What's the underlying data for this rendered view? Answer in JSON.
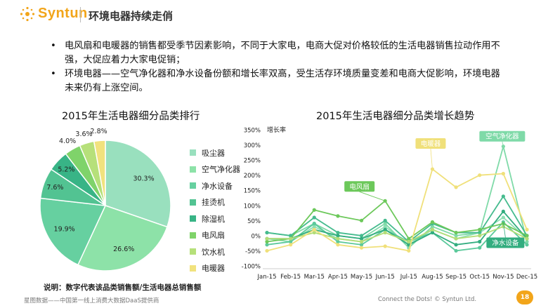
{
  "brand": {
    "name": "Syntun",
    "accent": "#f2a51a"
  },
  "header": {
    "title": "环境电器持续走俏"
  },
  "bullets": [
    "电风扇和电暖器的销售都受季节因素影响，不同于大家电，电商大促对价格较低的生活电器销售拉动作用不强，大促应着力大家电促销；",
    "环境电器——空气净化器和净水设备份额和增长率双高，受生活存环境质量变差和电商大促影响，环境电器未来仍有上涨空间。"
  ],
  "footer": {
    "left": "星图数据——中国第一线上消费大数据DaaS提供商",
    "right": "Connect the Dots!  © Syntun Ltd.",
    "page": "18"
  },
  "chart_data": [
    {
      "type": "pie",
      "title": "2015年生活电器细分品类排行",
      "note": "说明：数字代表该品类销售额/生活电器总销售额",
      "categories": [
        "吸尘器",
        "空气净化器",
        "净水设备",
        "挂烫机",
        "除湿机",
        "电风扇",
        "饮水机",
        "电暖器"
      ],
      "values": [
        30.3,
        26.6,
        19.9,
        7.6,
        5.2,
        4.0,
        3.6,
        2.8
      ],
      "labels": [
        "30.3%",
        "26.6%",
        "19.9%",
        "7.6%",
        "5.2%",
        "4.0%",
        "3.6%",
        "2.8%"
      ],
      "colors": [
        "#99e0be",
        "#8de2a8",
        "#66d0a0",
        "#52c392",
        "#38b486",
        "#7fd36a",
        "#b6e07a",
        "#f1e27e"
      ],
      "legend_position": "right"
    },
    {
      "type": "line",
      "title": "2015年生活电器细分品类增长趋势",
      "ylabel": "增长率",
      "x": [
        "Jan-15",
        "Feb-15",
        "Mar-15",
        "Apr-15",
        "May-15",
        "Jun-15",
        "Jul-15",
        "Aug-15",
        "Sep-15",
        "Oct-15",
        "Nov-15",
        "Dec-15"
      ],
      "yticks": [
        "350%",
        "300%",
        "250%",
        "200%",
        "150%",
        "100%",
        "50%",
        "0%",
        "-50%",
        "-100%"
      ],
      "ylim": [
        -100,
        350
      ],
      "series": [
        {
          "name": "吸尘器",
          "color": "#8ee0b4",
          "values": [
            -10,
            -20,
            30,
            -10,
            -20,
            30,
            -30,
            20,
            -10,
            10,
            60,
            -10
          ]
        },
        {
          "name": "空气净化器",
          "color": "#7fdaa8",
          "values": [
            10,
            0,
            40,
            0,
            -10,
            40,
            -40,
            30,
            0,
            10,
            295,
            -20
          ]
        },
        {
          "name": "净水设备",
          "color": "#5bc99b",
          "values": [
            -30,
            -20,
            40,
            -20,
            -30,
            20,
            -20,
            10,
            -50,
            -40,
            45,
            -30
          ]
        },
        {
          "name": "挂烫机",
          "color": "#45bb8e",
          "values": [
            10,
            0,
            60,
            10,
            0,
            50,
            -20,
            40,
            10,
            10,
            130,
            0
          ]
        },
        {
          "name": "除湿机",
          "color": "#32ad7f",
          "values": [
            -10,
            -10,
            20,
            0,
            -10,
            20,
            -30,
            10,
            -30,
            -20,
            80,
            -10
          ]
        },
        {
          "name": "电风扇",
          "color": "#6cc85a",
          "values": [
            -20,
            -10,
            85,
            65,
            50,
            115,
            -10,
            45,
            10,
            20,
            40,
            0
          ]
        },
        {
          "name": "饮水机",
          "color": "#b3dd77",
          "values": [
            -10,
            -10,
            10,
            -10,
            -20,
            10,
            -20,
            20,
            -10,
            0,
            30,
            -10
          ]
        },
        {
          "name": "电暖器",
          "color": "#f0e07a",
          "values": [
            -50,
            -30,
            20,
            -30,
            -40,
            -35,
            -50,
            220,
            160,
            200,
            205,
            20
          ]
        }
      ],
      "annotations": [
        {
          "text": "电风扇",
          "series": "电风扇"
        },
        {
          "text": "电暖器",
          "series": "电暖器"
        },
        {
          "text": "空气净化器",
          "series": "空气净化器"
        },
        {
          "text": "净水设备",
          "series": "净水设备"
        }
      ],
      "grid": false
    }
  ]
}
